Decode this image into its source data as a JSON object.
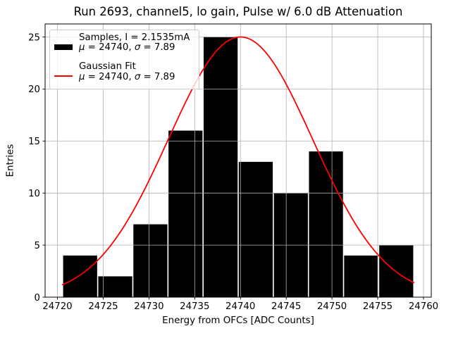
{
  "chart_data": {
    "type": "histogram",
    "title": "Run 2693, channel5, lo gain, Pulse w/ 6.0 dB Attenuation",
    "xlabel": "Energy from OFCs [ADC Counts]",
    "ylabel": "Entries",
    "xlim": [
      24718.65,
      24760.85
    ],
    "ylim": [
      0,
      26.25
    ],
    "xticks": [
      24720,
      24725,
      24730,
      24735,
      24740,
      24745,
      24750,
      24755,
      24760
    ],
    "yticks": [
      0,
      5,
      10,
      15,
      20,
      25
    ],
    "grid": true,
    "grid_color": "#b0b0b0",
    "bar_color": "#000000",
    "bin_start": 24720.56,
    "bin_width": 3.838,
    "counts": [
      4,
      2,
      7,
      16,
      25,
      13,
      10,
      14,
      4,
      5
    ],
    "fit": {
      "type": "gaussian",
      "mu": 24740,
      "sigma": 7.89,
      "amplitude": 25,
      "x_start": 24720.56,
      "x_end": 24758.94,
      "color": "#ff0000"
    },
    "legend": [
      {
        "swatch": "patch",
        "color": "#000000",
        "label": "Samples, I = 2.1535mA",
        "stats_parts": [
          "μ",
          " = 24740, ",
          "σ",
          " = 7.89"
        ]
      },
      {
        "swatch": "line",
        "color": "#ff0000",
        "label": "Gaussian Fit",
        "stats_parts": [
          "μ",
          " = 24740, ",
          "σ",
          " = 7.89"
        ]
      }
    ]
  }
}
